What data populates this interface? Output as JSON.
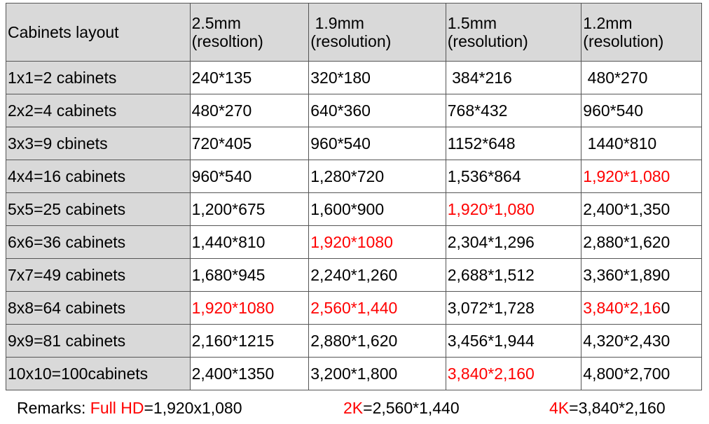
{
  "header": [
    "Cabinets layout",
    "2.5mm\n(resoltion)",
    " 1.9mm\n(resolution)",
    "1.5mm\n(resolution)",
    "1.2mm\n(resolution)"
  ],
  "rows": [
    {
      "layout": "1x1=2 cabinets",
      "cells": [
        {
          "black": "240*135"
        },
        {
          "black": "320*180"
        },
        {
          "black": " 384*216"
        },
        {
          "black": " 480*270"
        }
      ]
    },
    {
      "layout": "2x2=4 cabinets",
      "cells": [
        {
          "black": "480*270"
        },
        {
          "black": "640*360"
        },
        {
          "black": "768*432"
        },
        {
          "black": "960*540"
        }
      ]
    },
    {
      "layout": "3x3=9 cbinets",
      "cells": [
        {
          "black": "720*405"
        },
        {
          "black": "960*540"
        },
        {
          "black": "1152*648"
        },
        {
          "black": " 1440*810"
        }
      ]
    },
    {
      "layout": "4x4=16 cabinets",
      "cells": [
        {
          "black": "960*540"
        },
        {
          "black": "1,280*720"
        },
        {
          "black": "1,536*864"
        },
        {
          "red": "1,920*1,080"
        }
      ]
    },
    {
      "layout": "5x5=25 cabinets",
      "cells": [
        {
          "black": "1,200*675"
        },
        {
          "black": "1,600*900"
        },
        {
          "red": "1,920*1,080"
        },
        {
          "black": "2,400*1,350"
        }
      ]
    },
    {
      "layout": "6x6=36 cabinets",
      "cells": [
        {
          "black": "1,440*810"
        },
        {
          "red": "1,920*1080"
        },
        {
          "black": "2,304*1,296"
        },
        {
          "black": "2,880*1,620"
        }
      ]
    },
    {
      "layout": "7x7=49 cabinets",
      "cells": [
        {
          "black": "1,680*945"
        },
        {
          "black": "2,240*1,260"
        },
        {
          "black": "2,688*1,512"
        },
        {
          "black": "3,360*1,890"
        }
      ]
    },
    {
      "layout": "8x8=64 cabinets",
      "cells": [
        {
          "red": "1,920*1080"
        },
        {
          "red": "2,560*1,440"
        },
        {
          "black": "3,072*1,728"
        },
        {
          "red": "3,840*2,16",
          "black": "0"
        }
      ]
    },
    {
      "layout": "9x9=81 cabinets",
      "cells": [
        {
          "black": "2,160*1215"
        },
        {
          "black": "2,880*1,620"
        },
        {
          "black": "3,456*1,944"
        },
        {
          "black": "4,320*2,430"
        }
      ]
    },
    {
      "layout": "10x10=100cabinets",
      "cells": [
        {
          "black": "2,400*1350"
        },
        {
          "black": "3,200*1,800"
        },
        {
          "red": "3,840*2,160"
        },
        {
          "black": "4,800*2,700"
        }
      ]
    }
  ],
  "remarks": {
    "label": "Remarks: ",
    "full_hd_key": "Full HD",
    "full_hd_value": "=1,920x1,080",
    "k2_key": "2K",
    "k2_value": "=2,560*1,440",
    "k4_key": "4K",
    "k4_value": "=3,840*2,160"
  },
  "colors": {
    "highlight": "#ff0000",
    "header_bg": "#d9d9d9"
  }
}
